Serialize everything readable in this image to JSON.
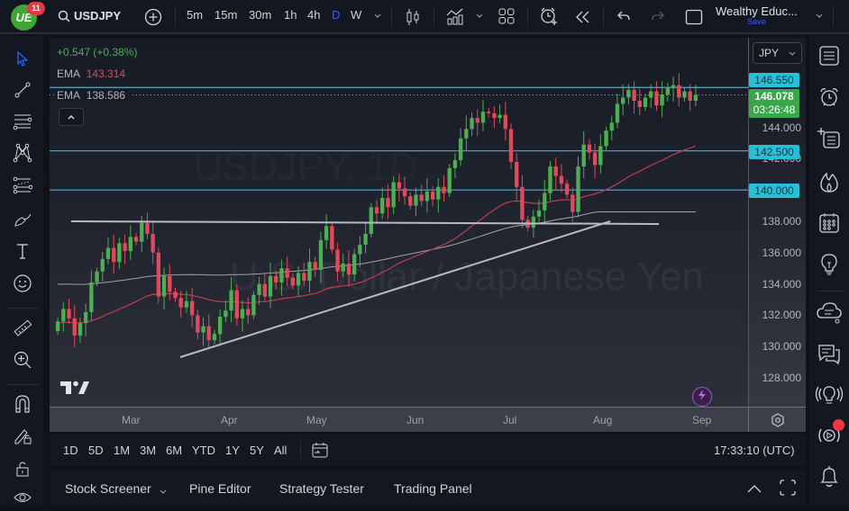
{
  "topbar": {
    "logo_text": "UE",
    "notification_count": "11",
    "symbol": "USDJPY",
    "intervals": [
      "5m",
      "15m",
      "30m",
      "1h",
      "4h",
      "D",
      "W"
    ],
    "active_interval": "D",
    "layout_name": "Wealthy Educ...",
    "save_label": "Save"
  },
  "legend": {
    "change": "+0.547 (+0.38%)",
    "ema1_label": "EMA",
    "ema1_value": "143.314",
    "ema2_label": "EMA",
    "ema2_value": "138.586"
  },
  "watermark": {
    "line1": "USDJPY, 1D",
    "line2": "U.S. Dollar / Japanese Yen"
  },
  "price_axis": {
    "currency": "JPY",
    "ticks": [
      "144.000",
      "142.000",
      "138.000",
      "136.000",
      "134.000",
      "132.000",
      "130.000",
      "128.000"
    ],
    "tags": [
      {
        "label": "146.550",
        "price": 146.55
      },
      {
        "label": "142.500",
        "price": 142.5
      },
      {
        "label": "140.000",
        "price": 140.0
      }
    ],
    "last_price": "146.078",
    "countdown": "03:26:48"
  },
  "time_axis": {
    "labels": [
      "Mar",
      "Apr",
      "May",
      "Jun",
      "Jul",
      "Aug",
      "Sep"
    ]
  },
  "range_bar": {
    "ranges": [
      "1D",
      "5D",
      "1M",
      "3M",
      "6M",
      "YTD",
      "1Y",
      "5Y",
      "All"
    ],
    "clock": "17:33:10 (UTC)"
  },
  "bottom_panel": {
    "tabs": [
      "Stock Screener",
      "Pine Editor",
      "Strategy Tester",
      "Trading Panel"
    ]
  },
  "colors": {
    "up": "#4caf50",
    "down": "#e04a5b",
    "hline": "#27c0d8",
    "ema_fast": "#c23b4b",
    "ema_slow": "#9ea3ad",
    "active": "#2962ff"
  },
  "chart_data": {
    "type": "candlestick",
    "title": "USDJPY, 1D",
    "xlabel": "",
    "ylabel": "JPY",
    "ylim": [
      127,
      147
    ],
    "x_ticks": [
      "Mar",
      "Apr",
      "May",
      "Jun",
      "Jul",
      "Aug",
      "Sep"
    ],
    "horizontal_levels": [
      146.55,
      142.5,
      140.0
    ],
    "support_line": {
      "from": [
        "Feb",
        137.8
      ],
      "to": [
        "Aug",
        137.8
      ]
    },
    "trendline": {
      "from": [
        "Mar",
        129.3
      ],
      "to": [
        "Jul",
        138.0
      ]
    },
    "last_price": 146.078,
    "ema_fast_last": 143.314,
    "ema_slow_last": 138.586
  }
}
